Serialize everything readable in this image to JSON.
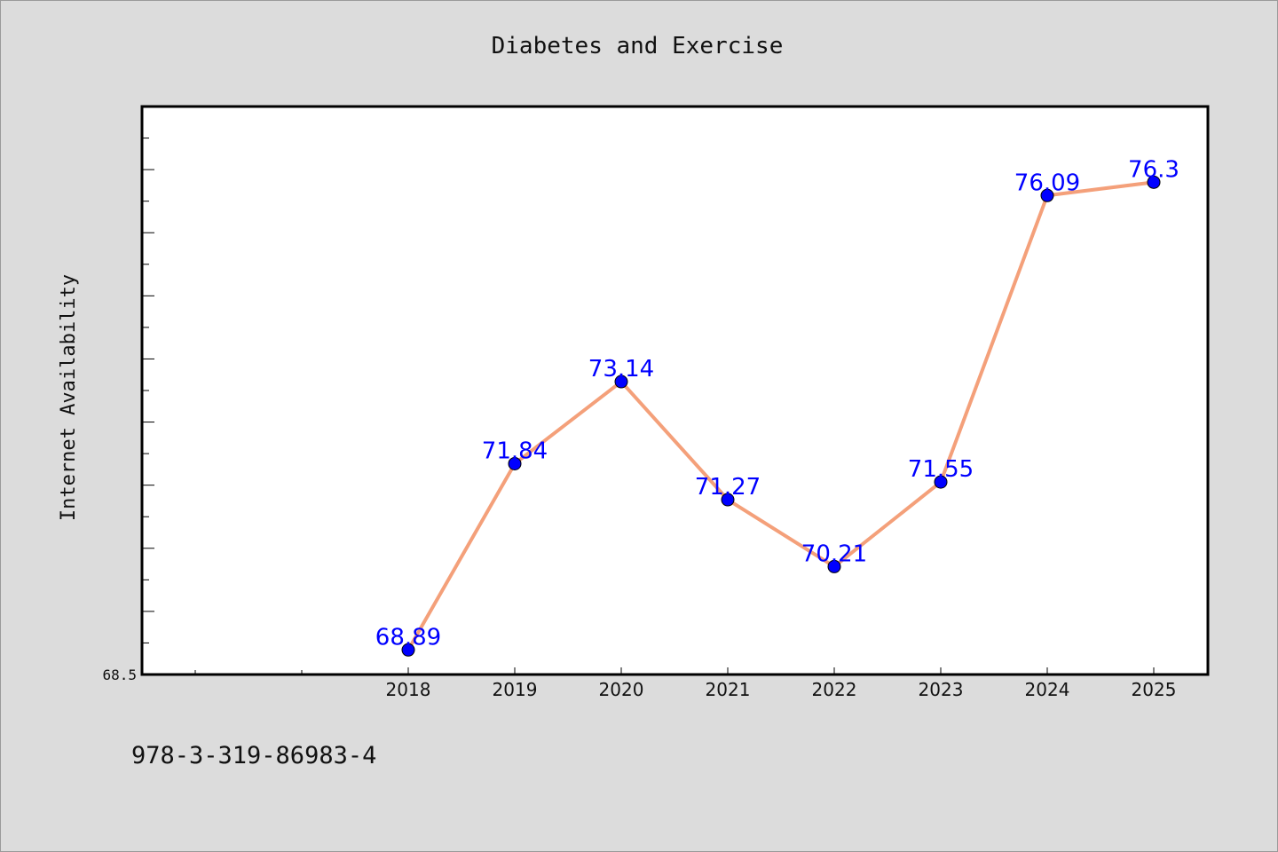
{
  "chart_data": {
    "type": "line",
    "title": "Diabetes and Exercise",
    "xlabel": "",
    "ylabel": "Internet Availability",
    "categories": [
      "2018",
      "2019",
      "2020",
      "2021",
      "2022",
      "2023",
      "2024",
      "2025"
    ],
    "values": [
      68.89,
      71.84,
      73.14,
      71.27,
      70.21,
      71.55,
      76.09,
      76.3
    ],
    "data_labels": [
      "68.89",
      "71.84",
      "73.14",
      "71.27",
      "70.21",
      "71.55",
      "76.09",
      "76.3"
    ],
    "ylim": [
      68.5,
      77.5
    ],
    "y_tick_labels": [
      "68.5"
    ],
    "grid": false,
    "legend": "none",
    "colors": {
      "line": "#f4a07a",
      "marker": "#0000ff",
      "data_label": "#0000ff",
      "plot_background": "#ffffff",
      "page_background": "#dcdcdc"
    }
  },
  "footer": {
    "code": "978-3-319-86983-4"
  }
}
